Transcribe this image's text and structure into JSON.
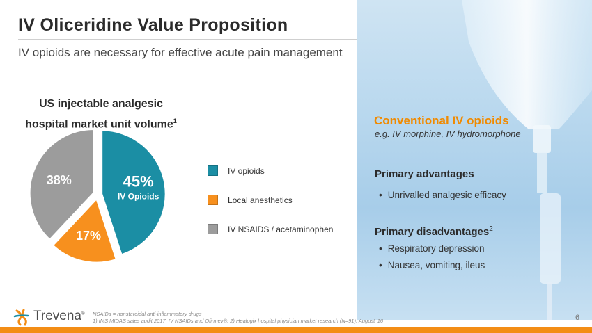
{
  "title": "IV Oliceridine Value Proposition",
  "subtitle": "IV opioids are necessary for effective acute pain management",
  "chart_data": {
    "type": "pie",
    "title_line1": "US injectable analgesic",
    "title_line2": "hospital market unit volume",
    "title_footnote": "1",
    "slices": [
      {
        "name": "IV opioids",
        "value": 45,
        "label": "45%",
        "sublabel": "IV Opioids",
        "color": "#1b8ea4"
      },
      {
        "name": "Local anesthetics",
        "value": 17,
        "label": "17%",
        "sublabel": "",
        "color": "#f7901e"
      },
      {
        "name": "IV NSAIDS / acetaminophen",
        "value": 38,
        "label": "38%",
        "sublabel": "",
        "color": "#9c9c9c"
      }
    ],
    "legend_placement": "right"
  },
  "panel": {
    "heading": "Conventional IV opioids",
    "example": "e.g. IV morphine, IV hydromorphone",
    "advantages_heading": "Primary advantages",
    "advantages": [
      "Unrivalled analgesic efficacy"
    ],
    "disadvantages_heading": "Primary disadvantages",
    "disadvantages_footnote": "2",
    "disadvantages": [
      "Respiratory depression",
      "Nausea, vomiting, ileus"
    ]
  },
  "footer": {
    "logo": "Trevena",
    "logo_mark": "®",
    "footnote_1": "NSAIDs = nonsteroidal anti-inflammatory drugs",
    "footnote_2": "1) IMS MIDAS sales audit 2017; IV NSAIDs and Ofirmev®. 2) Healogix hospital physician market research (N=91), August '16",
    "page": "6"
  },
  "colors": {
    "accent_orange": "#f38d15",
    "teal": "#1b8ea4",
    "grey": "#9c9c9c"
  }
}
